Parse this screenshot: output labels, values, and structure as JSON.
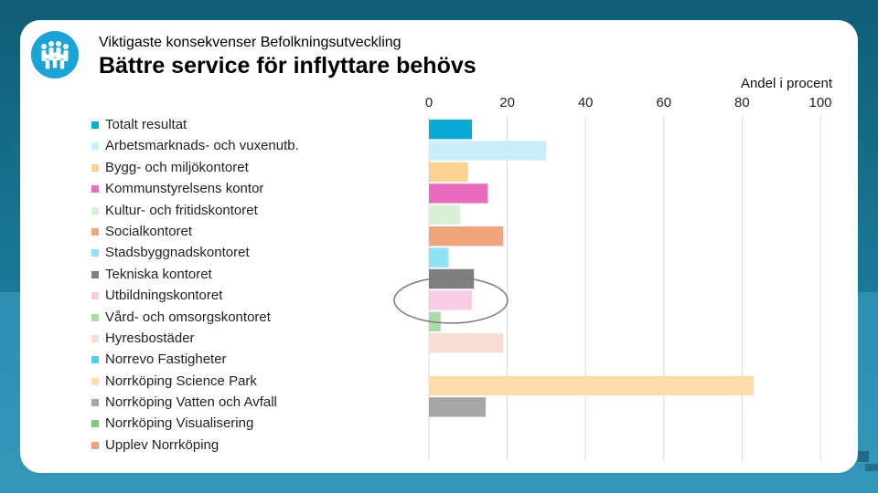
{
  "header": {
    "subtitle": "Viktigaste konsekvenser Befolkningsutveckling",
    "title": "Bättre service för inflyttare behövs"
  },
  "icons": {
    "logo": "people-group-icon"
  },
  "chart_data": {
    "type": "bar",
    "orientation": "horizontal",
    "unit_label": "Andel i procent",
    "xlim": [
      0,
      100
    ],
    "ticks": [
      0,
      20,
      40,
      60,
      80,
      100
    ],
    "grid": true,
    "legend_placement": "left",
    "highlight": {
      "category": "Utbildningskontoret",
      "shape": "ellipse"
    },
    "categories": [
      "Totalt resultat",
      "Arbetsmarknads- och vuxenutb.",
      "Bygg- och miljökontoret",
      "Kommunstyrelsens kontor",
      "Kultur- och fritidskontoret",
      "Socialkontoret",
      "Stadsbyggnadskontoret",
      "Tekniska kontoret",
      "Utbildningskontoret",
      "Vård- och omsorgskontoret",
      "Hyresbostäder",
      "Norrevo Fastigheter",
      "Norrköping Science Park",
      "Norrköping Vatten och Avfall",
      "Norrköping Visualisering",
      "Upplev Norrköping"
    ],
    "values": [
      11,
      30,
      10,
      15,
      8,
      19,
      5,
      11.5,
      11,
      3,
      19,
      0,
      83,
      14.5,
      0,
      0
    ],
    "colors": [
      "#0aaad6",
      "#c9eef9",
      "#fcd290",
      "#e96bbd",
      "#d9efd6",
      "#f0a47c",
      "#8fe3f6",
      "#7f7f7f",
      "#f8cbe6",
      "#a9dca7",
      "#f9ddd2",
      "#4fd0ee",
      "#fcdca8",
      "#a6a6a6",
      "#86c97d",
      "#f0a47c"
    ]
  }
}
